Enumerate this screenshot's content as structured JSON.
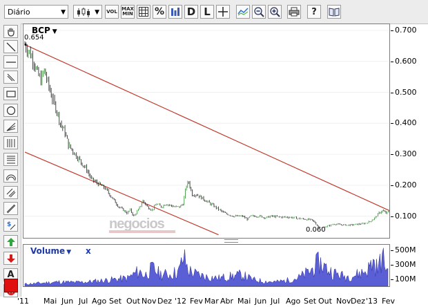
{
  "toolbar": {
    "period_select": "Diário",
    "buttons": [
      {
        "name": "candle-type-button",
        "icon": "candlestick-icon"
      },
      {
        "name": "volume-toggle-button",
        "text": "VOL"
      },
      {
        "name": "maxmin-toggle-button",
        "text": "MAX\nMIN"
      },
      {
        "name": "grid-toggle-button",
        "icon": "grid-icon"
      },
      {
        "name": "percent-button",
        "text": "%"
      },
      {
        "name": "compare-button",
        "icon": "compare-icon"
      },
      {
        "name": "daily-button",
        "text": "D"
      },
      {
        "name": "log-button",
        "text": "L"
      },
      {
        "name": "crosshair-button",
        "icon": "crosshair-icon"
      },
      {
        "name": "indicators-button",
        "icon": "indicators-icon"
      },
      {
        "name": "zoom-out-button",
        "icon": "zoom-out-icon"
      },
      {
        "name": "zoom-in-button",
        "icon": "zoom-in-icon"
      },
      {
        "name": "print-button",
        "icon": "print-icon"
      },
      {
        "name": "help-button",
        "text": "?"
      },
      {
        "name": "book-button",
        "icon": "book-icon"
      }
    ]
  },
  "sidebar": {
    "tools": [
      "hand-icon",
      "line-icon",
      "horizontal-line-icon",
      "vertical-line-icon",
      "rectangle-icon",
      "ellipse-icon",
      "fan-icon",
      "fibonacci-vertical-icon",
      "fibonacci-horizontal-icon",
      "arc-icon",
      "channel-icon",
      "parallel-lines-icon",
      "dollar-icon",
      "arrow-up-icon",
      "arrow-down-icon",
      "text-icon",
      "delete-icon",
      "color-swatch-icon"
    ],
    "text_tool_label": "A",
    "swatch_color": "#e0100f"
  },
  "chart": {
    "symbol": "BCP",
    "high_label": "0.654",
    "low_label": "0.060",
    "watermark": "negocios",
    "volume_title": "Volume",
    "volume_close": "x",
    "price_axis": [
      "0.700",
      "0.600",
      "0.500",
      "0.400",
      "0.300",
      "0.200",
      "0.100"
    ],
    "volume_axis": [
      "500M",
      "300M",
      "100M"
    ],
    "time_axis": [
      "'11",
      "Mai",
      "Jun",
      "Jul",
      "Ago",
      "Set",
      "Out",
      "Nov",
      "Dez",
      "'12",
      "Fev",
      "Mar",
      "Abr",
      "Mai",
      "Jun",
      "Jul",
      "Ago",
      "Set",
      "Out",
      "Nov",
      "Dez",
      "'13",
      "Fev"
    ]
  },
  "chart_data": {
    "type": "candlestick",
    "symbol": "BCP",
    "ylim": [
      0.03,
      0.72
    ],
    "price_points": [
      [
        0,
        0.654
      ],
      [
        4,
        0.63
      ],
      [
        8,
        0.6
      ],
      [
        11,
        0.56
      ],
      [
        14,
        0.54
      ],
      [
        17,
        0.57
      ],
      [
        20,
        0.53
      ],
      [
        24,
        0.48
      ],
      [
        28,
        0.44
      ],
      [
        31,
        0.4
      ],
      [
        35,
        0.37
      ],
      [
        38,
        0.33
      ],
      [
        42,
        0.31
      ],
      [
        46,
        0.29
      ],
      [
        50,
        0.27
      ],
      [
        54,
        0.25
      ],
      [
        58,
        0.22
      ],
      [
        62,
        0.21
      ],
      [
        66,
        0.2
      ],
      [
        70,
        0.19
      ],
      [
        74,
        0.17
      ],
      [
        78,
        0.15
      ],
      [
        82,
        0.13
      ],
      [
        86,
        0.12
      ],
      [
        89,
        0.11
      ],
      [
        92,
        0.12
      ],
      [
        95,
        0.1
      ],
      [
        99,
        0.12
      ],
      [
        103,
        0.15
      ],
      [
        107,
        0.13
      ],
      [
        111,
        0.12
      ],
      [
        115,
        0.14
      ],
      [
        119,
        0.13
      ],
      [
        123,
        0.14
      ],
      [
        127,
        0.135
      ],
      [
        131,
        0.13
      ],
      [
        135,
        0.13
      ],
      [
        138,
        0.14
      ],
      [
        141,
        0.2
      ],
      [
        143,
        0.21
      ],
      [
        146,
        0.17
      ],
      [
        150,
        0.17
      ],
      [
        154,
        0.16
      ],
      [
        158,
        0.15
      ],
      [
        162,
        0.14
      ],
      [
        166,
        0.13
      ],
      [
        170,
        0.12
      ],
      [
        174,
        0.11
      ],
      [
        178,
        0.105
      ],
      [
        182,
        0.1
      ],
      [
        186,
        0.1
      ],
      [
        190,
        0.1
      ],
      [
        194,
        0.09
      ],
      [
        197,
        0.1
      ],
      [
        200,
        0.1
      ],
      [
        205,
        0.1
      ],
      [
        210,
        0.095
      ],
      [
        215,
        0.1
      ],
      [
        220,
        0.098
      ],
      [
        225,
        0.097
      ],
      [
        230,
        0.097
      ],
      [
        235,
        0.095
      ],
      [
        240,
        0.092
      ],
      [
        245,
        0.09
      ],
      [
        250,
        0.088
      ],
      [
        253,
        0.08
      ],
      [
        256,
        0.065
      ],
      [
        259,
        0.062
      ],
      [
        262,
        0.066
      ],
      [
        266,
        0.07
      ],
      [
        270,
        0.075
      ],
      [
        274,
        0.073
      ],
      [
        278,
        0.072
      ],
      [
        282,
        0.071
      ],
      [
        286,
        0.072
      ],
      [
        290,
        0.074
      ],
      [
        294,
        0.075
      ],
      [
        298,
        0.078
      ],
      [
        302,
        0.085
      ],
      [
        306,
        0.097
      ],
      [
        309,
        0.11
      ],
      [
        312,
        0.118
      ],
      [
        315,
        0.11
      ],
      [
        318,
        0.115
      ]
    ],
    "trendlines": [
      {
        "from": [
          0,
          0.654
        ],
        "to": [
          318,
          0.118
        ],
        "color": "#c0392b"
      },
      {
        "from": [
          0,
          0.307
        ],
        "to": [
          169,
          0.04
        ],
        "color": "#c0392b"
      }
    ],
    "volume_axis_ticks": [
      "500M",
      "300M",
      "100M"
    ],
    "volume_peaks": [
      [
        0,
        40
      ],
      [
        15,
        60
      ],
      [
        30,
        80
      ],
      [
        45,
        70
      ],
      [
        60,
        90
      ],
      [
        75,
        120
      ],
      [
        90,
        150
      ],
      [
        100,
        280
      ],
      [
        105,
        200
      ],
      [
        112,
        330
      ],
      [
        118,
        230
      ],
      [
        126,
        210
      ],
      [
        135,
        280
      ],
      [
        139,
        540
      ],
      [
        143,
        300
      ],
      [
        150,
        220
      ],
      [
        160,
        170
      ],
      [
        170,
        150
      ],
      [
        180,
        180
      ],
      [
        190,
        210
      ],
      [
        200,
        120
      ],
      [
        210,
        90
      ],
      [
        220,
        80
      ],
      [
        230,
        110
      ],
      [
        240,
        160
      ],
      [
        250,
        280
      ],
      [
        258,
        450
      ],
      [
        264,
        330
      ],
      [
        270,
        250
      ],
      [
        280,
        180
      ],
      [
        290,
        210
      ],
      [
        300,
        300
      ],
      [
        305,
        460
      ],
      [
        309,
        320
      ],
      [
        313,
        540
      ],
      [
        316,
        380
      ],
      [
        318,
        280
      ]
    ]
  }
}
